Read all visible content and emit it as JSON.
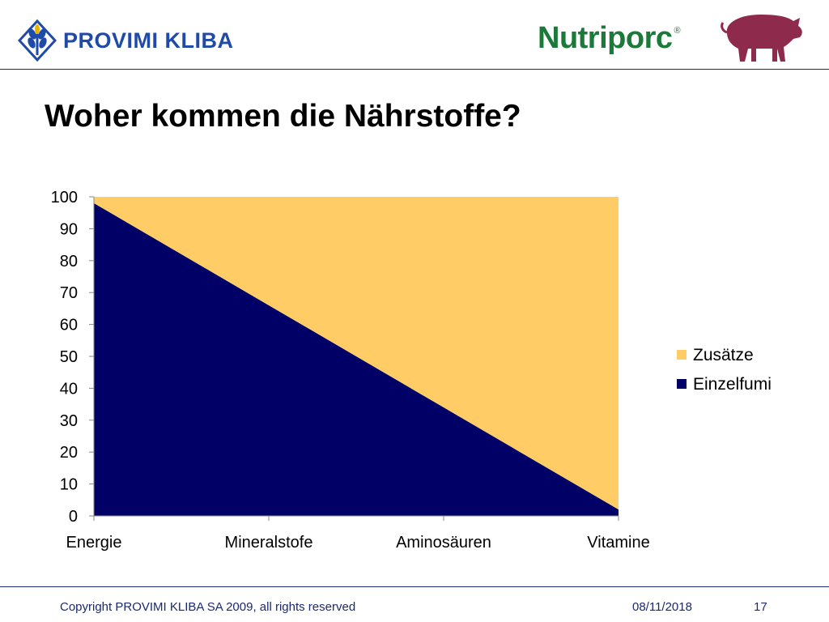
{
  "header": {
    "provimi_label": "PROVIMI KLIBA",
    "nutriporc_label": "Nutriporc",
    "nutriporc_reg": "®"
  },
  "title": "Woher kommen die Nährstoffe?",
  "chart_data": {
    "type": "area",
    "stacked": true,
    "categories": [
      "Energie",
      "Mineralstofe",
      "Aminosäuren",
      "Vitamine"
    ],
    "series": [
      {
        "name": "Einzelfumi",
        "values": [
          98,
          66,
          34,
          2
        ],
        "color": "#000066"
      },
      {
        "name": "Zusätze",
        "values": [
          2,
          34,
          66,
          98
        ],
        "color": "#ffcc66"
      }
    ],
    "ylim": [
      0,
      100
    ],
    "yticks": [
      0,
      10,
      20,
      30,
      40,
      50,
      60,
      70,
      80,
      90,
      100
    ],
    "legend_position": "right",
    "legend_order": [
      "Zusätze",
      "Einzelfumi"
    ],
    "grid": false
  },
  "footer": {
    "copyright": "Copyright PROVIMI KLIBA SA 2009, all rights reserved",
    "date": "08/11/2018",
    "page": "17"
  }
}
